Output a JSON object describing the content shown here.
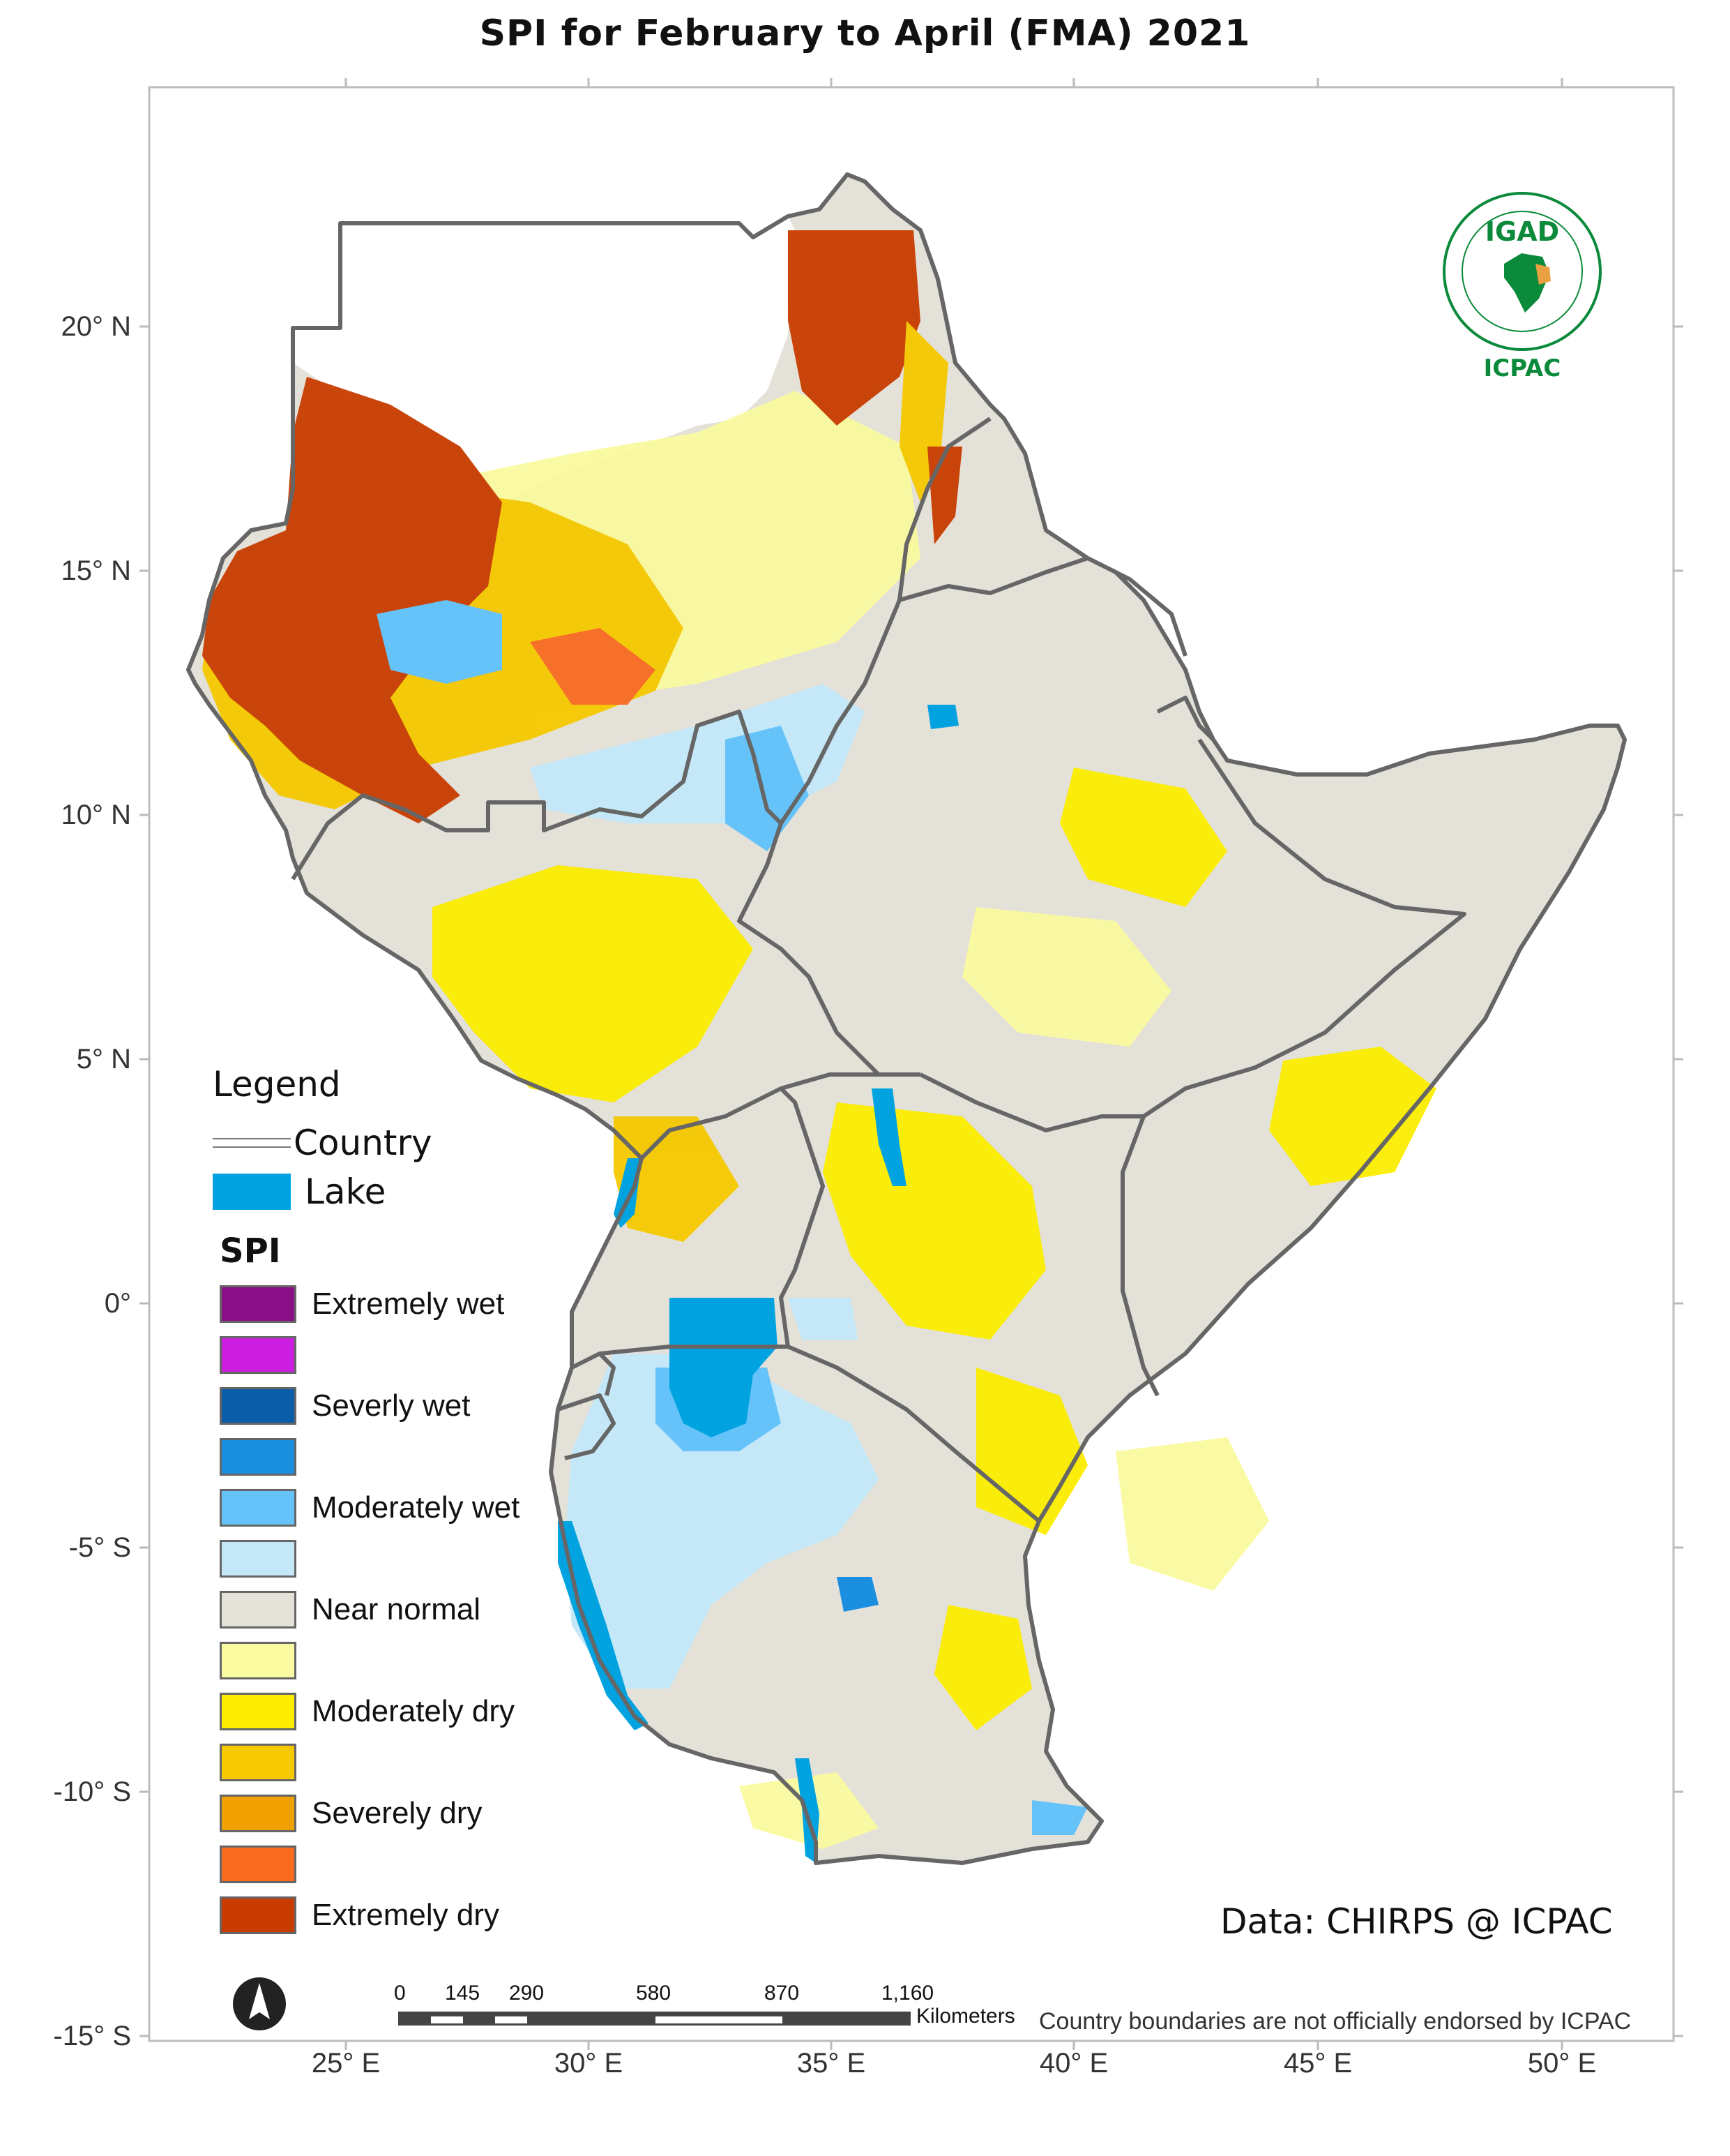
{
  "title": "SPI  for    February to April (FMA) 2021",
  "map": {
    "lat_ticks": [
      "20° N",
      "15° N",
      "10° N",
      "5° N",
      "0°",
      "-5° S",
      "-10° S",
      "-15° S"
    ],
    "lon_ticks": [
      "25° E",
      "30° E",
      "35° E",
      "40° E",
      "45° E",
      "50° E"
    ]
  },
  "legend": {
    "title": "Legend",
    "country_label": "Country",
    "lake_label": "Lake",
    "spi_title": "SPI",
    "classes": [
      {
        "label": "Extremely wet",
        "color": "#8b0f86"
      },
      {
        "label": "",
        "color": "#cc1ee0"
      },
      {
        "label": "Severly wet",
        "color": "#0a5ea8"
      },
      {
        "label": "",
        "color": "#1a8fe0"
      },
      {
        "label": "Moderately wet",
        "color": "#66c3fa"
      },
      {
        "label": "",
        "color": "#c4e8f8"
      },
      {
        "label": "Near normal",
        "color": "#e4e1d8"
      },
      {
        "label": "",
        "color": "#fafaa0"
      },
      {
        "label": "Moderately dry",
        "color": "#fbec00"
      },
      {
        "label": "",
        "color": "#f5c800"
      },
      {
        "label": "Severely dry",
        "color": "#f0a000"
      },
      {
        "label": "",
        "color": "#f86b20"
      },
      {
        "label": "Extremely dry",
        "color": "#c83c00"
      }
    ],
    "lake_color": "#00a3e0"
  },
  "scale_bar": {
    "ticks": [
      "0",
      "145",
      "290",
      "580",
      "870",
      "1,160"
    ],
    "unit": "Kilometers"
  },
  "credit": "Data: CHIRPS @ ICPAC",
  "disclaimer": "Country boundaries are not officially endorsed by ICPAC",
  "logo": {
    "top_text": "IGAD",
    "bottom_text": "ICPAC"
  },
  "north_arrow_icon": "north-arrow-icon"
}
